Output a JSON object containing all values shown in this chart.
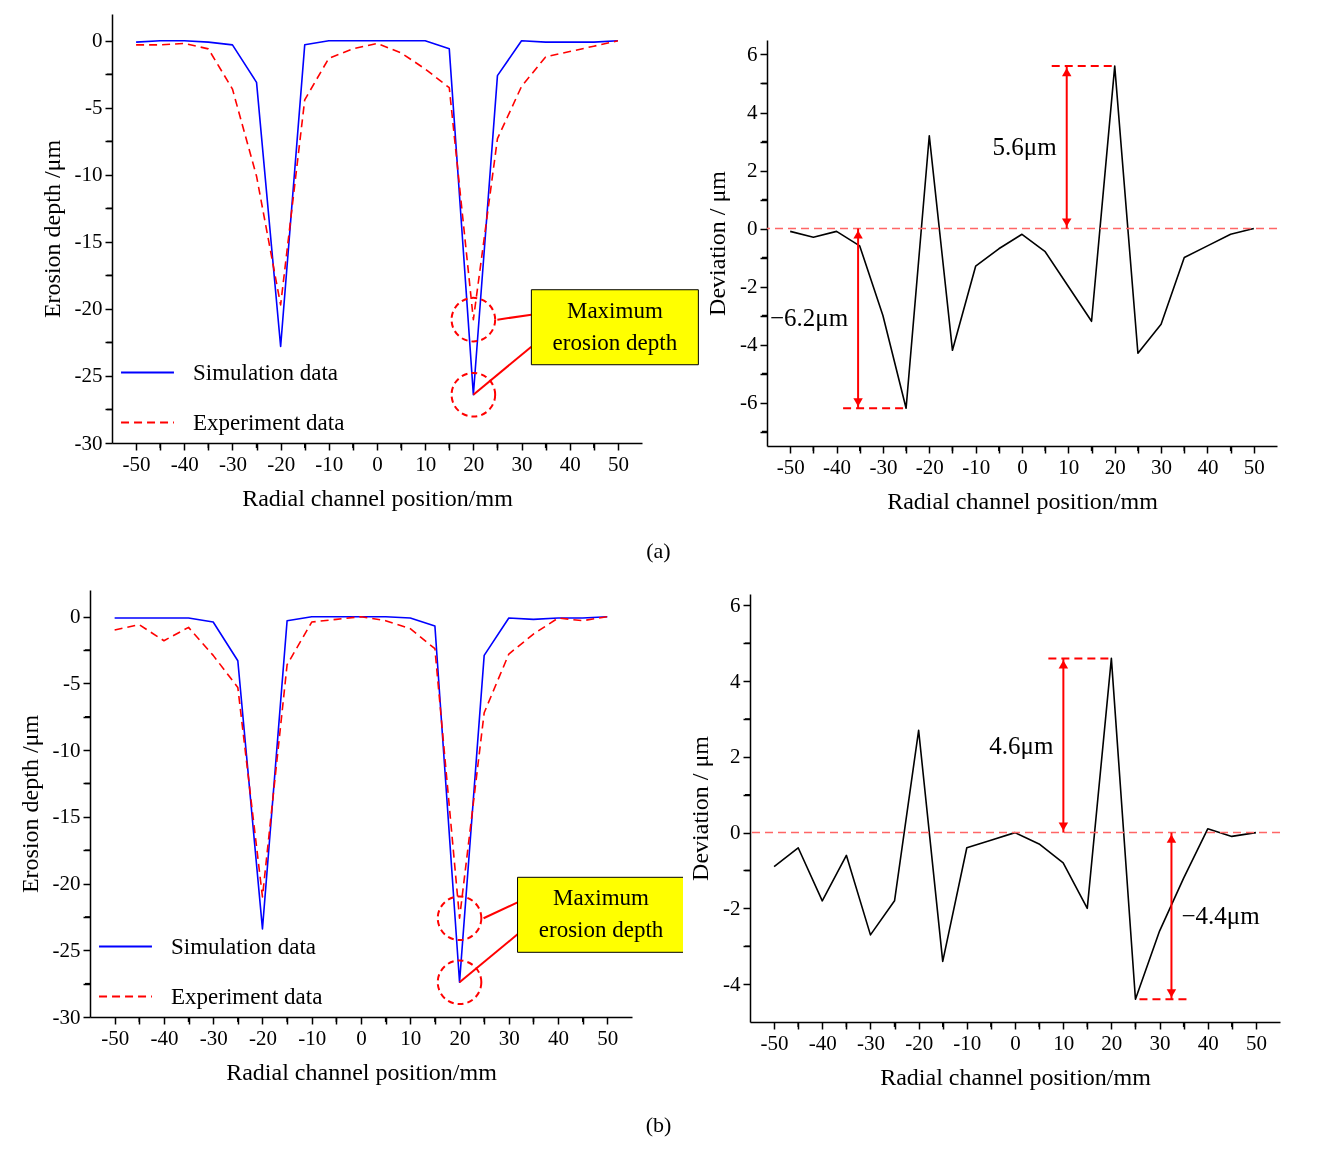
{
  "chart_data": [
    {
      "type": "line",
      "xlabel": "Radial channel position/mm",
      "ylabel": "Erosion depth /μm",
      "x": [
        -50,
        -45,
        -40,
        -35,
        -30,
        -25,
        -20,
        -15,
        -10,
        -5,
        0,
        5,
        10,
        15,
        20,
        25,
        30,
        35,
        40,
        45,
        50
      ],
      "xlim": [
        -55,
        55
      ],
      "xticks": [
        -50,
        {
          "value": -45,
          "label": null
        },
        -40,
        {
          "value": -35,
          "label": null
        },
        -30,
        {
          "value": -25,
          "label": null
        },
        -20,
        {
          "value": -15,
          "label": null
        },
        -10,
        {
          "value": -5,
          "label": null
        },
        0,
        {
          "value": 5,
          "label": null
        },
        10,
        {
          "value": 15,
          "label": null
        },
        20,
        {
          "value": 25,
          "label": null
        },
        30,
        {
          "value": 35,
          "label": null
        },
        40,
        {
          "value": 45,
          "label": null
        },
        50
      ],
      "ylim": [
        -30,
        2
      ],
      "yticks": [
        0,
        {
          "value": -2.5,
          "label": null
        },
        -5,
        {
          "value": -7.5,
          "label": null
        },
        -10,
        {
          "value": -12.5,
          "label": null
        },
        -15,
        {
          "value": -17.5,
          "label": null
        },
        -20,
        {
          "value": -22.5,
          "label": null
        },
        -25,
        {
          "value": -27.5,
          "label": null
        },
        -30
      ],
      "legend": "bottom left",
      "series": [
        {
          "name": "Simulation data",
          "color": "#0000ff",
          "line_style": "solid",
          "values": [
            -0.1,
            0,
            0,
            -0.1,
            -0.3,
            -3.1,
            -22.8,
            -0.3,
            0,
            0,
            0,
            0,
            0,
            -0.6,
            -26.4,
            -2.6,
            0,
            -0.1,
            -0.1,
            -0.1,
            0
          ]
        },
        {
          "name": "Experiment data",
          "color": "#ff0000",
          "line_style": "dashed",
          "values": [
            -0.3,
            -0.3,
            -0.2,
            -0.6,
            -3.6,
            -10.1,
            -19.7,
            -4.4,
            -1.3,
            -0.6,
            -0.2,
            -0.9,
            -2.1,
            -3.5,
            -20.8,
            -7.3,
            -3.4,
            -1.2,
            -0.8,
            -0.4,
            0
          ]
        }
      ],
      "annotations": [
        {
          "text": "Maximum\nerosion depth",
          "x": 20,
          "y": -26.4
        },
        "(a)"
      ]
    },
    {
      "type": "line",
      "xlabel": "Radial channel position/mm",
      "ylabel": "Deviation / μm",
      "x": [
        -50,
        -45,
        -40,
        -35,
        -30,
        -25,
        -20,
        -15,
        -10,
        -5,
        0,
        5,
        10,
        15,
        20,
        25,
        30,
        35,
        40,
        45,
        50
      ],
      "xlim": [
        -55,
        55
      ],
      "xticks": [
        -50,
        {
          "value": -45,
          "label": null
        },
        -40,
        {
          "value": -35,
          "label": null
        },
        -30,
        {
          "value": -25,
          "label": null
        },
        -20,
        {
          "value": -15,
          "label": null
        },
        -10,
        {
          "value": -5,
          "label": null
        },
        0,
        {
          "value": 5,
          "label": null
        },
        10,
        {
          "value": 15,
          "label": null
        },
        20,
        {
          "value": 25,
          "label": null
        },
        30,
        {
          "value": 35,
          "label": null
        },
        40,
        {
          "value": 45,
          "label": null
        },
        50
      ],
      "ylim": [
        -7.5,
        6.5
      ],
      "yticks": [
        {
          "value": -7,
          "label": null
        },
        -6,
        {
          "value": -5,
          "label": null
        },
        -4,
        {
          "value": -3,
          "label": null
        },
        -2,
        {
          "value": -1,
          "label": null
        },
        0,
        {
          "value": 1,
          "label": null
        },
        2,
        {
          "value": 3,
          "label": null
        },
        4,
        {
          "value": 5,
          "label": null
        },
        6
      ],
      "series": [
        {
          "color": "#000000",
          "line_style": "solid",
          "values": [
            -0.1,
            -0.3,
            -0.1,
            -0.6,
            -3.0,
            -6.2,
            3.2,
            -4.2,
            -1.3,
            -0.7,
            -0.2,
            -0.8,
            -2.0,
            -3.2,
            5.6,
            -4.3,
            -3.3,
            -1.0,
            -0.6,
            -0.2,
            0
          ]
        }
      ],
      "ref_lines": [
        {
          "axis": "y",
          "value": 0,
          "color": "#ff6666",
          "line_style": "dashed"
        }
      ],
      "annotations": [
        "5.6μm",
        "−6.2μm"
      ]
    },
    {
      "type": "line",
      "xlabel": "Radial channel position/mm",
      "ylabel": "Erosion depth /μm",
      "x": [
        -50,
        -45,
        -40,
        -35,
        -30,
        -25,
        -20,
        -15,
        -10,
        -5,
        0,
        5,
        10,
        15,
        20,
        25,
        30,
        35,
        40,
        45,
        50
      ],
      "xlim": [
        -55,
        55
      ],
      "xticks": [
        -50,
        {
          "value": -45,
          "label": null
        },
        -40,
        {
          "value": -35,
          "label": null
        },
        -30,
        {
          "value": -25,
          "label": null
        },
        -20,
        {
          "value": -15,
          "label": null
        },
        -10,
        {
          "value": -5,
          "label": null
        },
        0,
        {
          "value": 5,
          "label": null
        },
        10,
        {
          "value": 15,
          "label": null
        },
        20,
        {
          "value": 25,
          "label": null
        },
        30,
        {
          "value": 35,
          "label": null
        },
        40,
        {
          "value": 45,
          "label": null
        },
        50
      ],
      "ylim": [
        -30,
        2
      ],
      "yticks": [
        0,
        {
          "value": -2.5,
          "label": null
        },
        -5,
        {
          "value": -7.5,
          "label": null
        },
        -10,
        {
          "value": -12.5,
          "label": null
        },
        -15,
        {
          "value": -17.5,
          "label": null
        },
        -20,
        {
          "value": -22.5,
          "label": null
        },
        -25,
        {
          "value": -27.5,
          "label": null
        },
        -30
      ],
      "legend": "bottom left",
      "series": [
        {
          "name": "Simulation data",
          "color": "#0000ff",
          "line_style": "solid",
          "values": [
            -0.1,
            -0.1,
            -0.1,
            -0.1,
            -0.4,
            -3.3,
            -23.4,
            -0.3,
            0,
            0,
            0,
            0,
            -0.1,
            -0.7,
            -27.4,
            -2.9,
            -0.1,
            -0.2,
            -0.1,
            -0.1,
            0
          ]
        },
        {
          "name": "Experiment data",
          "color": "#ff0000",
          "line_style": "dashed",
          "values": [
            -1.0,
            -0.6,
            -1.8,
            -0.8,
            -2.9,
            -5.3,
            -21.0,
            -3.6,
            -0.4,
            -0.2,
            0,
            -0.3,
            -0.9,
            -2.4,
            -22.6,
            -7.2,
            -2.8,
            -1.3,
            -0.1,
            -0.3,
            0
          ]
        }
      ],
      "annotations": [
        {
          "text": "Maximum\nerosion depth",
          "x": 20,
          "y": -27.4
        },
        "(b)"
      ]
    },
    {
      "type": "line",
      "xlabel": "Radial channel position/mm",
      "ylabel": "Deviation / μm",
      "x": [
        -50,
        -45,
        -40,
        -35,
        -30,
        -25,
        -20,
        -15,
        -10,
        -5,
        0,
        5,
        10,
        15,
        20,
        25,
        30,
        35,
        40,
        45,
        50
      ],
      "xlim": [
        -55,
        55
      ],
      "xticks": [
        -50,
        {
          "value": -45,
          "label": null
        },
        -40,
        {
          "value": -35,
          "label": null
        },
        -30,
        {
          "value": -25,
          "label": null
        },
        -20,
        {
          "value": -15,
          "label": null
        },
        -10,
        {
          "value": -5,
          "label": null
        },
        0,
        {
          "value": 5,
          "label": null
        },
        10,
        {
          "value": 15,
          "label": null
        },
        20,
        {
          "value": 25,
          "label": null
        },
        30,
        {
          "value": 35,
          "label": null
        },
        40,
        {
          "value": 45,
          "label": null
        },
        50
      ],
      "ylim": [
        -5,
        6.3
      ],
      "yticks": [
        -4,
        {
          "value": -3,
          "label": null
        },
        -2,
        {
          "value": -1,
          "label": null
        },
        0,
        {
          "value": 1,
          "label": null
        },
        2,
        {
          "value": 3,
          "label": null
        },
        4,
        {
          "value": 5,
          "label": null
        },
        6
      ],
      "series": [
        {
          "color": "#000000",
          "line_style": "solid",
          "values": [
            -0.9,
            -0.4,
            -1.8,
            -0.6,
            -2.7,
            -1.8,
            2.7,
            -3.4,
            -0.4,
            -0.2,
            0,
            -0.3,
            -0.8,
            -2.0,
            4.6,
            -4.4,
            -2.6,
            -1.2,
            0.1,
            -0.1,
            0
          ]
        }
      ],
      "ref_lines": [
        {
          "axis": "y",
          "value": 0,
          "color": "#ff6666",
          "line_style": "dashed"
        }
      ],
      "annotations": [
        "4.6μm",
        "−4.4μm"
      ]
    }
  ]
}
